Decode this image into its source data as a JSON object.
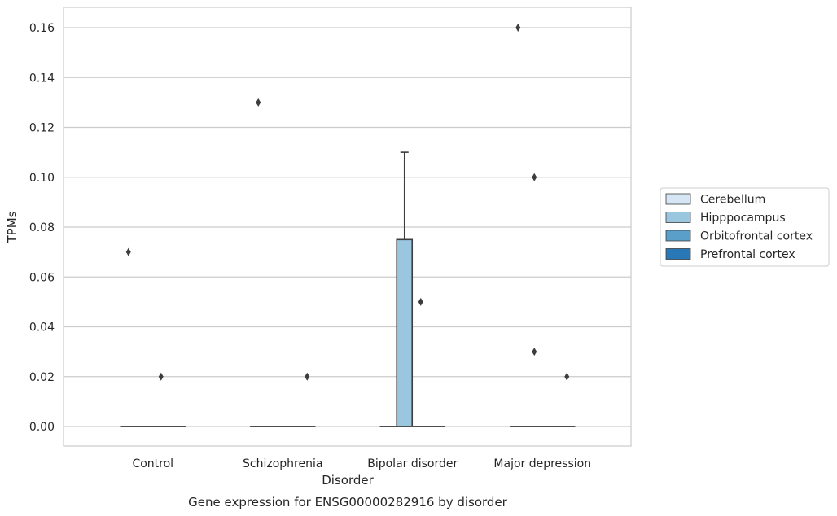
{
  "chart_data": {
    "type": "box",
    "title": "",
    "caption": "Gene expression for ENSG00000282916 by disorder",
    "xlabel": "Disorder",
    "ylabel": "TPMs",
    "ylim": [
      -0.008,
      0.168
    ],
    "yticks": [
      0.0,
      0.02,
      0.04,
      0.06,
      0.08,
      0.1,
      0.12,
      0.14,
      0.16
    ],
    "ytick_labels": [
      "0.00",
      "0.02",
      "0.04",
      "0.06",
      "0.08",
      "0.10",
      "0.12",
      "0.14",
      "0.16"
    ],
    "grid": "horizontal",
    "legend_position": "right",
    "categories": [
      "Control",
      "Schizophrenia",
      "Bipolar disorder",
      "Major depression"
    ],
    "series": [
      {
        "name": "Cerebellum",
        "color": "#d6e6f4",
        "boxes": [
          {
            "q1": 0,
            "median": 0,
            "q3": 0,
            "whislo": 0,
            "whishi": 0,
            "fliers": [
              0.07
            ]
          },
          {
            "q1": 0,
            "median": 0,
            "q3": 0,
            "whislo": 0,
            "whishi": 0,
            "fliers": [
              0.13
            ]
          },
          {
            "q1": 0,
            "median": 0,
            "q3": 0,
            "whislo": 0,
            "whishi": 0,
            "fliers": []
          },
          {
            "q1": 0,
            "median": 0,
            "q3": 0,
            "whislo": 0,
            "whishi": 0,
            "fliers": [
              0.16
            ]
          }
        ]
      },
      {
        "name": "Hipppocampus",
        "color": "#9ac6df",
        "boxes": [
          {
            "q1": 0,
            "median": 0,
            "q3": 0,
            "whislo": 0,
            "whishi": 0,
            "fliers": []
          },
          {
            "q1": 0,
            "median": 0,
            "q3": 0,
            "whislo": 0,
            "whishi": 0,
            "fliers": []
          },
          {
            "q1": 0,
            "median": 0,
            "q3": 0.075,
            "whislo": 0,
            "whishi": 0.11,
            "fliers": []
          },
          {
            "q1": 0,
            "median": 0,
            "q3": 0,
            "whislo": 0,
            "whishi": 0,
            "fliers": [
              0.03,
              0.1
            ]
          }
        ]
      },
      {
        "name": "Orbitofrontal cortex",
        "color": "#5a9fca",
        "boxes": [
          {
            "q1": 0,
            "median": 0,
            "q3": 0,
            "whislo": 0,
            "whishi": 0,
            "fliers": [
              0.02
            ]
          },
          {
            "q1": 0,
            "median": 0,
            "q3": 0,
            "whislo": 0,
            "whishi": 0,
            "fliers": []
          },
          {
            "q1": 0,
            "median": 0,
            "q3": 0,
            "whislo": 0,
            "whishi": 0,
            "fliers": [
              0.05
            ]
          },
          {
            "q1": 0,
            "median": 0,
            "q3": 0,
            "whislo": 0,
            "whishi": 0,
            "fliers": []
          }
        ]
      },
      {
        "name": "Prefrontal cortex",
        "color": "#2878b7",
        "boxes": [
          {
            "q1": 0,
            "median": 0,
            "q3": 0,
            "whislo": 0,
            "whishi": 0,
            "fliers": []
          },
          {
            "q1": 0,
            "median": 0,
            "q3": 0,
            "whislo": 0,
            "whishi": 0,
            "fliers": [
              0.02
            ]
          },
          {
            "q1": 0,
            "median": 0,
            "q3": 0,
            "whislo": 0,
            "whishi": 0,
            "fliers": []
          },
          {
            "q1": 0,
            "median": 0,
            "q3": 0,
            "whislo": 0,
            "whishi": 0,
            "fliers": [
              0.02
            ]
          }
        ]
      }
    ]
  }
}
